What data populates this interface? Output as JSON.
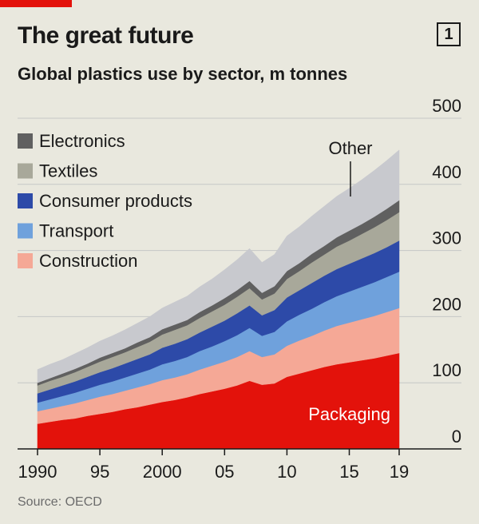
{
  "header": {
    "title": "The great future",
    "badge": "1",
    "subtitle": "Global plastics use by sector, m tonnes",
    "source": "Source: OECD"
  },
  "chart_data": {
    "type": "area",
    "stacked": true,
    "title": "The great future",
    "subtitle": "Global plastics use by sector, m tonnes",
    "xlabel": "",
    "ylabel": "",
    "unit": "m tonnes",
    "xlim": [
      1990,
      2019
    ],
    "ylim": [
      0,
      500
    ],
    "y_ticks": [
      0,
      100,
      200,
      300,
      400,
      500
    ],
    "y_axis_position": "right",
    "x_ticks": [
      1990,
      1995,
      2000,
      2005,
      2010,
      2015,
      2019
    ],
    "x_tick_labels": [
      "1990",
      "95",
      "2000",
      "05",
      "10",
      "15",
      "19"
    ],
    "grid": "horizontal",
    "legend": "top-left",
    "x": [
      1990,
      1991,
      1992,
      1993,
      1994,
      1995,
      1996,
      1997,
      1998,
      1999,
      2000,
      2001,
      2002,
      2003,
      2004,
      2005,
      2006,
      2007,
      2008,
      2009,
      2010,
      2011,
      2012,
      2013,
      2014,
      2015,
      2016,
      2017,
      2018,
      2019
    ],
    "series": [
      {
        "name": "Packaging",
        "color": "#e3120b",
        "values": [
          38,
          41,
          44,
          46,
          50,
          53,
          56,
          60,
          63,
          67,
          71,
          74,
          78,
          83,
          87,
          91,
          96,
          103,
          97,
          99,
          109,
          114,
          119,
          124,
          128,
          131,
          134,
          137,
          141,
          145
        ]
      },
      {
        "name": "Construction",
        "color": "#f5a896",
        "values": [
          19,
          20,
          21,
          23,
          24,
          26,
          27,
          28,
          30,
          31,
          33,
          34,
          35,
          37,
          39,
          41,
          43,
          45,
          42,
          44,
          47,
          50,
          52,
          55,
          58,
          60,
          62,
          64,
          66,
          68
        ]
      },
      {
        "name": "Transport",
        "color": "#6fa1dc",
        "values": [
          13,
          14,
          15,
          16,
          17,
          18,
          19,
          20,
          21,
          22,
          24,
          25,
          26,
          28,
          29,
          31,
          33,
          35,
          32,
          34,
          37,
          39,
          41,
          43,
          45,
          47,
          49,
          51,
          53,
          55
        ]
      },
      {
        "name": "Consumer products",
        "color": "#2d4aa8",
        "values": [
          14,
          15,
          16,
          17,
          18,
          19,
          20,
          21,
          22,
          23,
          25,
          26,
          27,
          28,
          30,
          31,
          33,
          34,
          31,
          33,
          36,
          37,
          39,
          40,
          41,
          42,
          43,
          44,
          45,
          47
        ]
      },
      {
        "name": "Textiles",
        "color": "#a8a89a",
        "values": [
          12,
          13,
          13,
          14,
          15,
          16,
          17,
          17,
          18,
          19,
          20,
          21,
          21,
          22,
          23,
          24,
          25,
          26,
          24,
          25,
          28,
          29,
          31,
          32,
          34,
          35,
          37,
          39,
          41,
          43
        ]
      },
      {
        "name": "Electronics",
        "color": "#606060",
        "values": [
          4,
          4,
          5,
          5,
          5,
          6,
          6,
          6,
          7,
          7,
          8,
          8,
          8,
          9,
          9,
          10,
          10,
          11,
          10,
          11,
          12,
          12,
          13,
          13,
          14,
          15,
          15,
          16,
          17,
          18
        ]
      },
      {
        "name": "Other",
        "color": "#c8c9ce",
        "values": [
          20,
          21,
          21,
          23,
          24,
          25,
          26,
          28,
          29,
          31,
          32,
          34,
          36,
          38,
          40,
          43,
          46,
          49,
          46,
          48,
          53,
          55,
          57,
          60,
          62,
          64,
          67,
          70,
          73,
          76
        ]
      }
    ],
    "annotations": [
      {
        "text": "Packaging"
      },
      {
        "text": "Other"
      }
    ]
  }
}
